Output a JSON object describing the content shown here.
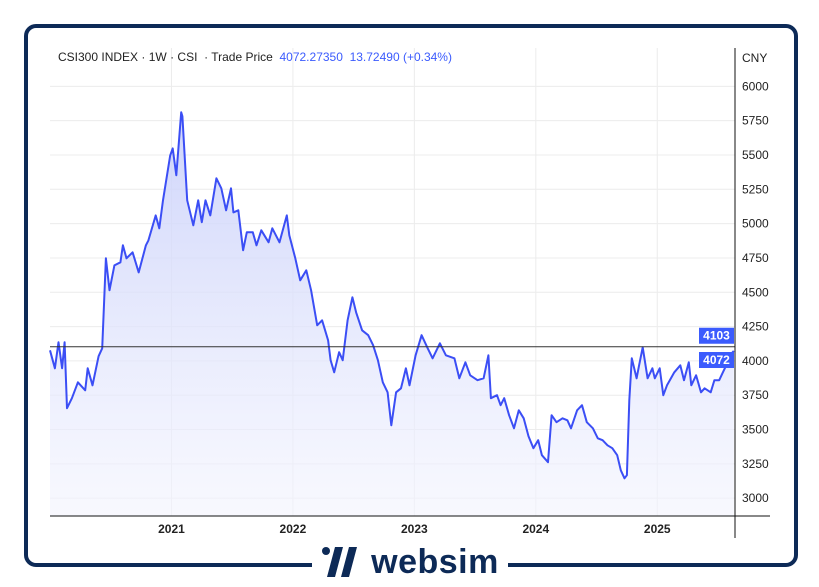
{
  "header": {
    "symbol": "CSI300 INDEX",
    "interval": "1W",
    "exchange": "CSI",
    "price_type": "Trade Price",
    "last": "4072.27350",
    "change": "13.72490 (+0.34%)",
    "separator": "·"
  },
  "currency": "CNY",
  "price_labels": [
    {
      "text": "4103",
      "value": 4103
    },
    {
      "text": "4072",
      "value": 4072
    }
  ],
  "brand": {
    "name": "websim"
  },
  "colors": {
    "line": "#3b4ef5",
    "fill": "#dfe3fc",
    "label_bg": "#3b5bfd",
    "frame": "#0d2a57"
  },
  "chart_data": {
    "type": "area",
    "title": "CSI300 INDEX · 1W · CSI · Trade Price",
    "xlabel": "",
    "ylabel": "CNY",
    "xlim": [
      2020.0,
      2025.64
    ],
    "ylim": [
      2870,
      6090
    ],
    "grid": true,
    "x_ticks": [
      2021,
      2022,
      2023,
      2024,
      2025
    ],
    "x_tick_labels": [
      "2021",
      "2022",
      "2023",
      "2024",
      "2025"
    ],
    "y_ticks": [
      3000,
      3250,
      3500,
      3750,
      4000,
      4250,
      4500,
      4750,
      5000,
      5250,
      5500,
      5750,
      6000
    ],
    "y_tick_labels": [
      "3000",
      "3250",
      "3500",
      "3750",
      "4000",
      "4250",
      "4500",
      "4750",
      "5000",
      "5250",
      "5500",
      "5750",
      "6000"
    ],
    "reference_line": 4103,
    "series": [
      {
        "name": "CSI300 INDEX",
        "points": [
          [
            2020.0,
            4077
          ],
          [
            2020.04,
            3946
          ],
          [
            2020.07,
            4136
          ],
          [
            2020.1,
            3946
          ],
          [
            2020.12,
            4136
          ],
          [
            2020.14,
            3655
          ],
          [
            2020.18,
            3728
          ],
          [
            2020.23,
            3844
          ],
          [
            2020.29,
            3786
          ],
          [
            2020.31,
            3946
          ],
          [
            2020.35,
            3822
          ],
          [
            2020.4,
            4034
          ],
          [
            2020.43,
            4092
          ],
          [
            2020.46,
            4748
          ],
          [
            2020.49,
            4514
          ],
          [
            2020.53,
            4696
          ],
          [
            2020.58,
            4718
          ],
          [
            2020.6,
            4842
          ],
          [
            2020.63,
            4747
          ],
          [
            2020.68,
            4791
          ],
          [
            2020.73,
            4645
          ],
          [
            2020.79,
            4842
          ],
          [
            2020.81,
            4878
          ],
          [
            2020.87,
            5060
          ],
          [
            2020.9,
            4966
          ],
          [
            2020.93,
            5170
          ],
          [
            2020.99,
            5497
          ],
          [
            2021.01,
            5548
          ],
          [
            2021.04,
            5352
          ],
          [
            2021.08,
            5811
          ],
          [
            2021.09,
            5782
          ],
          [
            2021.13,
            5170
          ],
          [
            2021.18,
            4988
          ],
          [
            2021.22,
            5170
          ],
          [
            2021.25,
            5010
          ],
          [
            2021.28,
            5170
          ],
          [
            2021.32,
            5060
          ],
          [
            2021.37,
            5330
          ],
          [
            2021.41,
            5257
          ],
          [
            2021.45,
            5097
          ],
          [
            2021.49,
            5257
          ],
          [
            2021.51,
            5082
          ],
          [
            2021.55,
            5097
          ],
          [
            2021.59,
            4806
          ],
          [
            2021.62,
            4937
          ],
          [
            2021.67,
            4937
          ],
          [
            2021.7,
            4842
          ],
          [
            2021.74,
            4951
          ],
          [
            2021.8,
            4864
          ],
          [
            2021.83,
            4966
          ],
          [
            2021.89,
            4864
          ],
          [
            2021.95,
            5060
          ],
          [
            2021.97,
            4915
          ],
          [
            2022.02,
            4747
          ],
          [
            2022.06,
            4587
          ],
          [
            2022.11,
            4660
          ],
          [
            2022.15,
            4514
          ],
          [
            2022.2,
            4259
          ],
          [
            2022.24,
            4296
          ],
          [
            2022.29,
            4150
          ],
          [
            2022.31,
            4005
          ],
          [
            2022.34,
            3917
          ],
          [
            2022.38,
            4063
          ],
          [
            2022.41,
            4005
          ],
          [
            2022.45,
            4296
          ],
          [
            2022.49,
            4463
          ],
          [
            2022.52,
            4354
          ],
          [
            2022.57,
            4223
          ],
          [
            2022.62,
            4187
          ],
          [
            2022.66,
            4114
          ],
          [
            2022.7,
            4005
          ],
          [
            2022.74,
            3844
          ],
          [
            2022.78,
            3771
          ],
          [
            2022.81,
            3531
          ],
          [
            2022.85,
            3771
          ],
          [
            2022.89,
            3800
          ],
          [
            2022.93,
            3946
          ],
          [
            2022.96,
            3822
          ],
          [
            2023.01,
            4041
          ],
          [
            2023.06,
            4187
          ],
          [
            2023.11,
            4092
          ],
          [
            2023.15,
            4019
          ],
          [
            2023.21,
            4128
          ],
          [
            2023.26,
            4041
          ],
          [
            2023.33,
            4019
          ],
          [
            2023.37,
            3873
          ],
          [
            2023.42,
            3990
          ],
          [
            2023.46,
            3895
          ],
          [
            2023.52,
            3859
          ],
          [
            2023.57,
            3873
          ],
          [
            2023.61,
            4041
          ],
          [
            2023.63,
            3728
          ],
          [
            2023.68,
            3750
          ],
          [
            2023.71,
            3677
          ],
          [
            2023.74,
            3728
          ],
          [
            2023.78,
            3604
          ],
          [
            2023.82,
            3509
          ],
          [
            2023.86,
            3640
          ],
          [
            2023.9,
            3582
          ],
          [
            2023.94,
            3451
          ],
          [
            2023.98,
            3364
          ],
          [
            2024.02,
            3422
          ],
          [
            2024.05,
            3313
          ],
          [
            2024.1,
            3262
          ],
          [
            2024.13,
            3604
          ],
          [
            2024.17,
            3553
          ],
          [
            2024.22,
            3582
          ],
          [
            2024.26,
            3567
          ],
          [
            2024.29,
            3509
          ],
          [
            2024.34,
            3640
          ],
          [
            2024.38,
            3677
          ],
          [
            2024.42,
            3553
          ],
          [
            2024.47,
            3509
          ],
          [
            2024.51,
            3436
          ],
          [
            2024.55,
            3422
          ],
          [
            2024.59,
            3385
          ],
          [
            2024.63,
            3364
          ],
          [
            2024.67,
            3313
          ],
          [
            2024.7,
            3203
          ],
          [
            2024.73,
            3145
          ],
          [
            2024.75,
            3167
          ],
          [
            2024.77,
            3713
          ],
          [
            2024.79,
            4019
          ],
          [
            2024.83,
            3873
          ],
          [
            2024.85,
            3968
          ],
          [
            2024.88,
            4099
          ],
          [
            2024.92,
            3873
          ],
          [
            2024.96,
            3946
          ],
          [
            2024.98,
            3873
          ],
          [
            2025.02,
            3946
          ],
          [
            2025.05,
            3750
          ],
          [
            2025.08,
            3822
          ],
          [
            2025.14,
            3917
          ],
          [
            2025.19,
            3968
          ],
          [
            2025.22,
            3859
          ],
          [
            2025.26,
            3990
          ],
          [
            2025.28,
            3822
          ],
          [
            2025.32,
            3895
          ],
          [
            2025.36,
            3771
          ],
          [
            2025.39,
            3800
          ],
          [
            2025.44,
            3771
          ],
          [
            2025.47,
            3859
          ],
          [
            2025.51,
            3859
          ],
          [
            2025.54,
            3917
          ],
          [
            2025.58,
            3990
          ],
          [
            2025.62,
            4063
          ],
          [
            2025.63,
            4072
          ]
        ]
      }
    ]
  }
}
